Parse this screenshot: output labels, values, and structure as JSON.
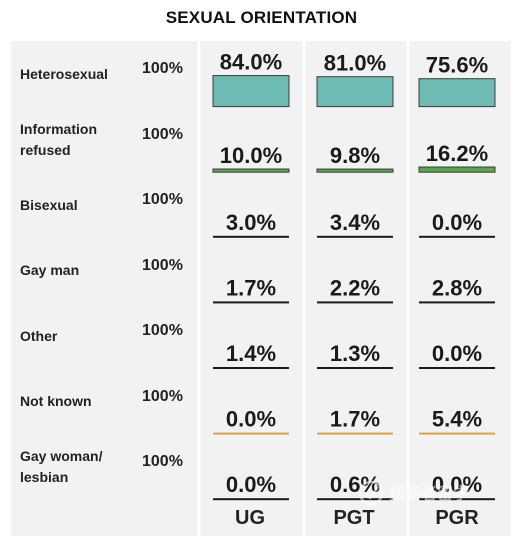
{
  "chart_data": {
    "type": "bar",
    "title": "SEXUAL ORIENTATION",
    "categories": [
      "UG",
      "PGT",
      "PGR"
    ],
    "rows": [
      {
        "label": "Heterosexual",
        "total": "100%",
        "values": [
          84.0,
          81.0,
          75.6
        ],
        "labels": [
          "84.0%",
          "81.0%",
          "75.6%"
        ],
        "color": "#6dbbb3"
      },
      {
        "label": "Information refused",
        "total": "100%",
        "values": [
          10.0,
          9.8,
          16.2
        ],
        "labels": [
          "10.0%",
          "9.8%",
          "16.2%"
        ],
        "color": "#5aa64a"
      },
      {
        "label": "Bisexual",
        "total": "100%",
        "values": [
          3.0,
          3.4,
          0.0
        ],
        "labels": [
          "3.0%",
          "3.4%",
          "0.0%"
        ],
        "color": "#1a1a1a"
      },
      {
        "label": "Gay man",
        "total": "100%",
        "values": [
          1.7,
          2.2,
          2.8
        ],
        "labels": [
          "1.7%",
          "2.2%",
          "2.8%"
        ],
        "color": "#1a1a1a"
      },
      {
        "label": "Other",
        "total": "100%",
        "values": [
          1.4,
          1.3,
          0.0
        ],
        "labels": [
          "1.4%",
          "1.3%",
          "0.0%"
        ],
        "color": "#1a1a1a"
      },
      {
        "label": "Not known",
        "total": "100%",
        "values": [
          0.0,
          1.7,
          5.4
        ],
        "labels": [
          "0.0%",
          "1.7%",
          "5.4%"
        ],
        "color": "#e3a43c"
      },
      {
        "label": "Gay woman/ lesbian",
        "total": "100%",
        "values": [
          0.0,
          0.6,
          0.0
        ],
        "labels": [
          "0.0%",
          "0.6%",
          "0.0%"
        ],
        "color": "#1a1a1a"
      }
    ],
    "ylim": [
      0,
      100
    ],
    "grid": false,
    "legend": "none"
  },
  "watermark": {
    "text": "指南者留学"
  }
}
